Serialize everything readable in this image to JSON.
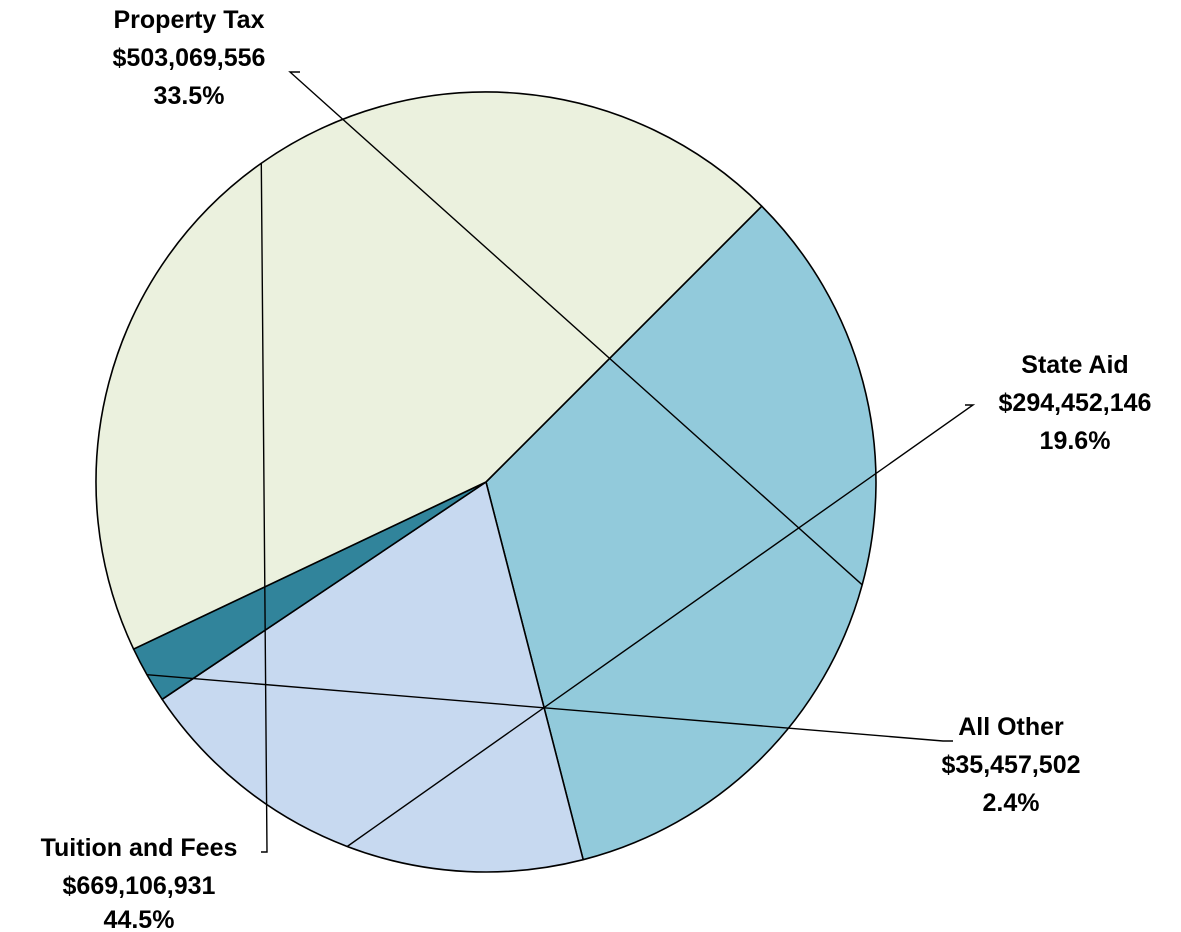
{
  "chart_data": {
    "type": "pie",
    "slices": [
      {
        "category": "Property Tax",
        "value": 503069556,
        "value_label": "$503,069,556",
        "percent_label": "33.5%",
        "percent": 33.5,
        "color": "#92cadb"
      },
      {
        "category": "State Aid",
        "value": 294452146,
        "value_label": "$294,452,146",
        "percent_label": "19.6%",
        "percent": 19.6,
        "color": "#c7d9f0"
      },
      {
        "category": "All Other",
        "value": 35457502,
        "value_label": "$35,457,502",
        "percent_label": "2.4%",
        "percent": 2.4,
        "color": "#31849b"
      },
      {
        "category": "Tuition and Fees",
        "value": 669106931,
        "value_label": "$669,106,931",
        "percent_label": "44.5%",
        "percent": 44.5,
        "color": "#ebf1de"
      }
    ],
    "legend": "none"
  }
}
